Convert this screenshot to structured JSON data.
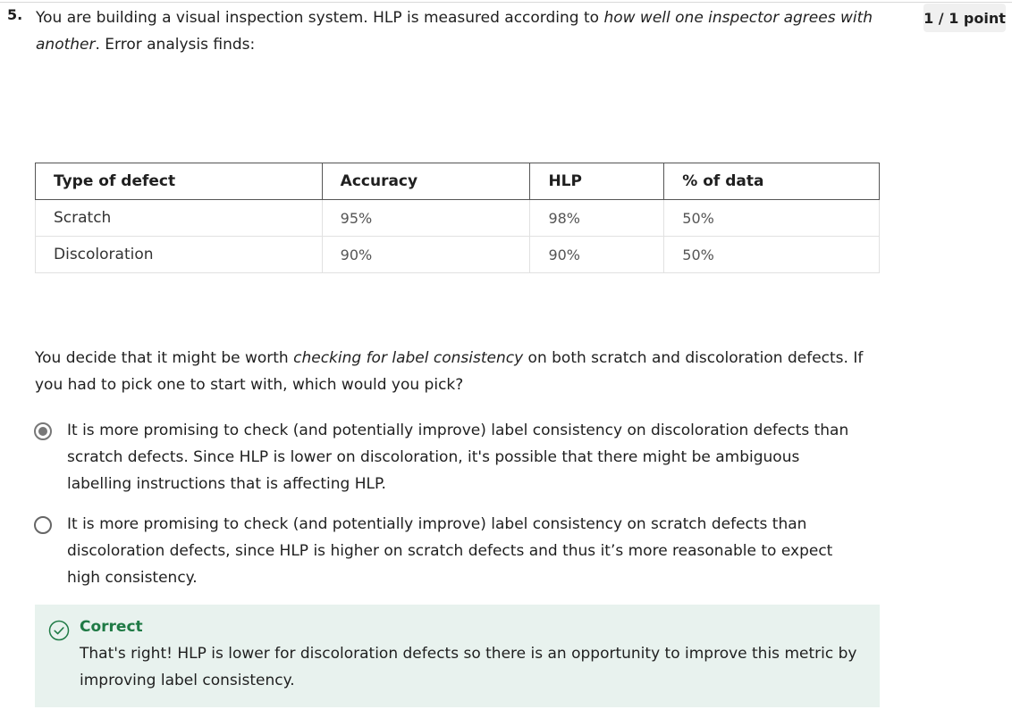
{
  "question": {
    "number": "5.",
    "text_before": "You are building a visual inspection system. HLP is measured according to ",
    "text_emphasis": "how well one inspector agrees with another",
    "text_after": ". Error analysis finds:",
    "points": "1 / 1 point"
  },
  "table": {
    "headers": [
      "Type of defect",
      "Accuracy",
      "HLP",
      "% of data"
    ],
    "rows": [
      [
        "Scratch",
        "95%",
        "98%",
        "50%"
      ],
      [
        "Discoloration",
        "90%",
        "90%",
        "50%"
      ]
    ]
  },
  "prompt": {
    "before": "You decide that it might be worth ",
    "emphasis": "checking for label consistency",
    "after": " on both scratch and discoloration defects. If you had to pick one to start with, which would you pick?"
  },
  "options": [
    {
      "text": "It is more promising to check (and potentially improve) label consistency on discoloration defects than scratch defects. Since HLP is lower on discoloration, it's possible that there might be ambiguous labelling instructions that is affecting HLP.",
      "selected": true
    },
    {
      "text": "It is more promising to check (and potentially improve) label consistency on scratch defects than discoloration defects, since HLP is higher on scratch defects and thus it’s more reasonable to expect high consistency.",
      "selected": false
    }
  ],
  "feedback": {
    "title": "Correct",
    "text": "That's right! HLP is lower for discoloration defects so there is an opportunity to improve this metric by improving label consistency."
  },
  "colors": {
    "correct_green": "#1f7a45",
    "feedback_bg": "#e8f2ee"
  },
  "icons": {
    "feedback": "check-circle-icon"
  }
}
